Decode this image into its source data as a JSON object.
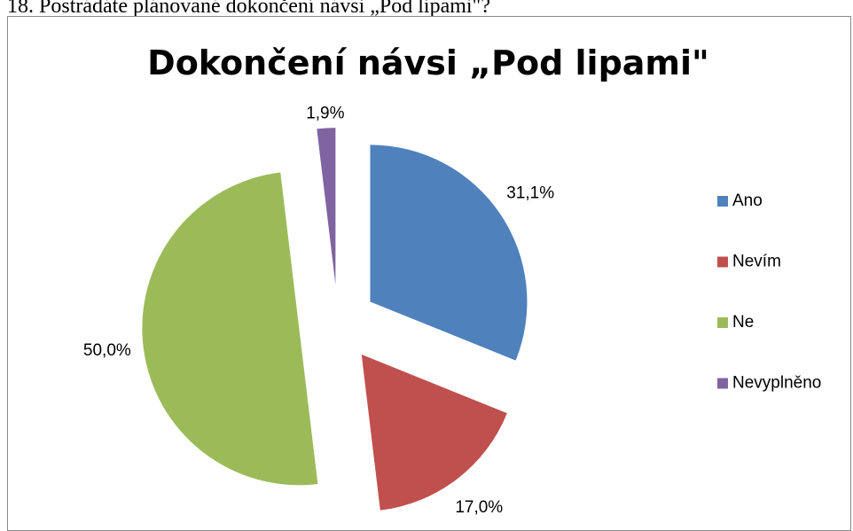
{
  "heading": "18. Postrádáte plánované dokončení návsi „Pod lipami\"?",
  "chart_data": {
    "type": "pie",
    "title": "Dokončení návsi „Pod lipami\"",
    "categories": [
      "Ano",
      "Nevím",
      "Ne",
      "Nevyplněno"
    ],
    "values": [
      31.1,
      17.0,
      50.0,
      1.9
    ],
    "value_labels": [
      "31,1%",
      "17,0%",
      "50,0%",
      "1,9%"
    ],
    "colors": [
      "#4f81bd",
      "#c0504d",
      "#9bbb59",
      "#8064a2"
    ],
    "exploded": true,
    "legend": "right"
  }
}
